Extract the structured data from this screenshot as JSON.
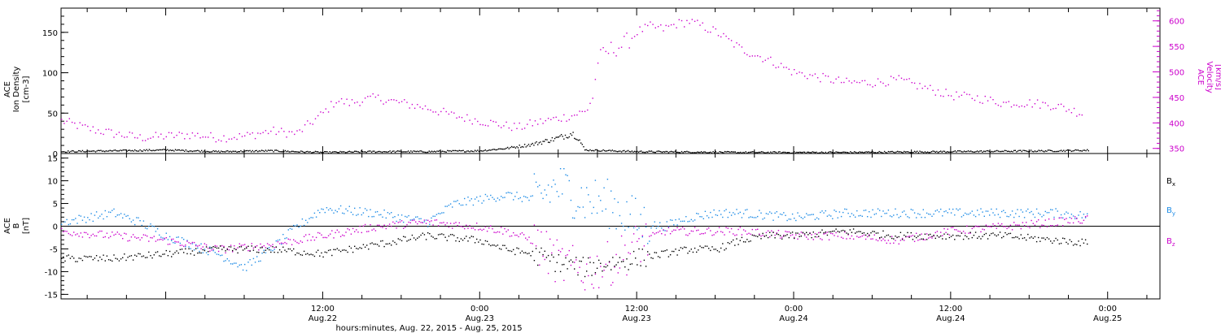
{
  "figure": {
    "xlabel": "hours:minutes, Aug. 22, 2015 - Aug. 25, 2015",
    "time_axis": {
      "range": [
        "2015-08-21T16:00",
        "2015-08-25T04:00"
      ],
      "ticks": [
        {
          "time": "2015-08-22T12:00",
          "line1": "12:00",
          "line2": "Aug.22"
        },
        {
          "time": "2015-08-23T00:00",
          "line1": "0:00",
          "line2": "Aug.23"
        },
        {
          "time": "2015-08-23T12:00",
          "line1": "12:00",
          "line2": "Aug.23"
        },
        {
          "time": "2015-08-24T00:00",
          "line1": "0:00",
          "line2": "Aug.24"
        },
        {
          "time": "2015-08-24T12:00",
          "line1": "12:00",
          "line2": "Aug.24"
        },
        {
          "time": "2015-08-25T00:00",
          "line1": "0:00",
          "line2": "Aug.25"
        }
      ]
    }
  },
  "chart_data": [
    {
      "type": "scatter",
      "panel": "top",
      "ylabel_left": [
        "ACE",
        "Ion Density",
        "[cm-3]"
      ],
      "ylabel_right": [
        "ACE",
        "Velocity",
        "[km/s]"
      ],
      "yleft_lim": [
        0,
        180
      ],
      "yleft_ticks": [
        0,
        50,
        100,
        150
      ],
      "yright_lim": [
        340,
        625
      ],
      "yright_ticks": [
        350,
        400,
        450,
        500,
        550,
        600
      ],
      "colors": {
        "density": "#000000",
        "velocity": "#cc00cc"
      },
      "series": [
        {
          "name": "Ion Density",
          "axis": "left",
          "x": [
            "2015-08-21T16:00",
            "2015-08-21T20:00",
            "2015-08-22T00:00",
            "2015-08-22T04:00",
            "2015-08-22T08:00",
            "2015-08-22T12:00",
            "2015-08-22T16:00",
            "2015-08-22T20:00",
            "2015-08-23T00:00",
            "2015-08-23T02:00",
            "2015-08-23T04:00",
            "2015-08-23T05:00",
            "2015-08-23T06:00",
            "2015-08-23T06:40",
            "2015-08-23T07:00",
            "2015-08-23T07:30",
            "2015-08-23T08:00",
            "2015-08-23T12:00",
            "2015-08-23T20:00",
            "2015-08-24T04:00",
            "2015-08-24T12:00",
            "2015-08-24T20:00",
            "2015-08-25T00:00"
          ],
          "y": [
            3,
            4,
            5,
            3,
            4,
            2,
            3,
            3,
            4,
            7,
            12,
            16,
            20,
            24,
            26,
            20,
            5,
            3,
            2,
            2,
            3,
            4,
            5
          ]
        },
        {
          "name": "Velocity",
          "axis": "right",
          "x": [
            "2015-08-21T16:00",
            "2015-08-21T18:00",
            "2015-08-21T20:00",
            "2015-08-21T22:00",
            "2015-08-22T00:00",
            "2015-08-22T02:00",
            "2015-08-22T04:00",
            "2015-08-22T06:00",
            "2015-08-22T08:00",
            "2015-08-22T10:00",
            "2015-08-22T12:00",
            "2015-08-22T13:00",
            "2015-08-22T14:00",
            "2015-08-22T16:00",
            "2015-08-22T18:00",
            "2015-08-22T20:00",
            "2015-08-22T22:00",
            "2015-08-23T00:00",
            "2015-08-23T02:00",
            "2015-08-23T03:00",
            "2015-08-23T04:00",
            "2015-08-23T05:00",
            "2015-08-23T06:00",
            "2015-08-23T07:00",
            "2015-08-23T07:30",
            "2015-08-23T08:00",
            "2015-08-23T08:40",
            "2015-08-23T09:00",
            "2015-08-23T10:00",
            "2015-08-23T11:00",
            "2015-08-23T12:00",
            "2015-08-23T13:00",
            "2015-08-23T14:00",
            "2015-08-23T15:00",
            "2015-08-23T16:00",
            "2015-08-23T18:00",
            "2015-08-23T20:00",
            "2015-08-23T22:00",
            "2015-08-24T00:00",
            "2015-08-24T02:00",
            "2015-08-24T04:00",
            "2015-08-24T06:00",
            "2015-08-24T08:00",
            "2015-08-24T10:00",
            "2015-08-24T12:00",
            "2015-08-24T14:00",
            "2015-08-24T16:00",
            "2015-08-24T18:00",
            "2015-08-24T20:00",
            "2015-08-24T22:00"
          ],
          "y": [
            405,
            390,
            380,
            372,
            375,
            378,
            372,
            375,
            385,
            380,
            420,
            445,
            440,
            450,
            440,
            430,
            415,
            405,
            395,
            392,
            400,
            405,
            410,
            415,
            420,
            422,
            455,
            525,
            545,
            555,
            580,
            590,
            585,
            595,
            600,
            580,
            545,
            525,
            500,
            490,
            480,
            480,
            485,
            470,
            455,
            450,
            440,
            440,
            435,
            420
          ]
        }
      ]
    },
    {
      "type": "scatter",
      "panel": "bottom",
      "ylabel_left": [
        "ACE",
        "B",
        "[nT]"
      ],
      "ylim": [
        -16,
        16
      ],
      "yticks": [
        -15,
        -10,
        -5,
        0,
        5,
        10,
        15
      ],
      "zero_line": true,
      "colors": {
        "Bx": "#000000",
        "By": "#1e8ce6",
        "Bz": "#cc00cc"
      },
      "series": [
        {
          "name": "Bx",
          "x": [
            "2015-08-21T16:00",
            "2015-08-21T20:00",
            "2015-08-22T00:00",
            "2015-08-22T04:00",
            "2015-08-22T08:00",
            "2015-08-22T12:00",
            "2015-08-22T16:00",
            "2015-08-22T20:00",
            "2015-08-23T00:00",
            "2015-08-23T02:00",
            "2015-08-23T04:00",
            "2015-08-23T06:00",
            "2015-08-23T08:00",
            "2015-08-23T10:00",
            "2015-08-23T12:00",
            "2015-08-23T14:00",
            "2015-08-23T16:00",
            "2015-08-23T18:00",
            "2015-08-23T20:00",
            "2015-08-23T22:00",
            "2015-08-24T00:00",
            "2015-08-24T04:00",
            "2015-08-24T08:00",
            "2015-08-24T12:00",
            "2015-08-24T16:00",
            "2015-08-24T20:00",
            "2015-08-25T00:00"
          ],
          "y": [
            -7,
            -7,
            -6,
            -5,
            -5,
            -6,
            -4,
            -2,
            -3,
            -5,
            -6,
            -8,
            -9,
            -8,
            -7,
            -6,
            -5,
            -5,
            -3,
            -2,
            -2,
            -1,
            -2,
            -2,
            -2,
            -3,
            -4
          ]
        },
        {
          "name": "By",
          "x": [
            "2015-08-21T16:00",
            "2015-08-21T18:00",
            "2015-08-21T20:00",
            "2015-08-21T22:00",
            "2015-08-22T00:00",
            "2015-08-22T02:00",
            "2015-08-22T04:00",
            "2015-08-22T06:00",
            "2015-08-22T08:00",
            "2015-08-22T10:00",
            "2015-08-22T12:00",
            "2015-08-22T16:00",
            "2015-08-22T20:00",
            "2015-08-22T22:00",
            "2015-08-23T00:00",
            "2015-08-23T02:00",
            "2015-08-23T04:00",
            "2015-08-23T06:00",
            "2015-08-23T08:00",
            "2015-08-23T10:00",
            "2015-08-23T12:00",
            "2015-08-23T14:00",
            "2015-08-23T16:00",
            "2015-08-23T18:00",
            "2015-08-23T20:00",
            "2015-08-24T00:00",
            "2015-08-24T04:00",
            "2015-08-24T08:00",
            "2015-08-24T12:00",
            "2015-08-24T16:00",
            "2015-08-24T20:00",
            "2015-08-25T00:00"
          ],
          "y": [
            1,
            2,
            3,
            1,
            -2,
            -4,
            -6,
            -9,
            -5,
            0,
            4,
            3,
            1,
            5,
            6,
            7,
            6,
            9,
            6,
            5,
            1,
            0,
            2,
            3,
            3,
            2,
            3,
            3,
            3,
            3,
            3,
            2
          ]
        },
        {
          "name": "Bz",
          "x": [
            "2015-08-21T16:00",
            "2015-08-21T20:00",
            "2015-08-22T00:00",
            "2015-08-22T04:00",
            "2015-08-22T08:00",
            "2015-08-22T12:00",
            "2015-08-22T16:00",
            "2015-08-22T20:00",
            "2015-08-23T00:00",
            "2015-08-23T02:00",
            "2015-08-23T04:00",
            "2015-08-23T06:00",
            "2015-08-23T08:00",
            "2015-08-23T10:00",
            "2015-08-23T12:00",
            "2015-08-23T14:00",
            "2015-08-23T16:00",
            "2015-08-23T20:00",
            "2015-08-24T00:00",
            "2015-08-24T04:00",
            "2015-08-24T08:00",
            "2015-08-24T12:00",
            "2015-08-24T16:00",
            "2015-08-24T20:00",
            "2015-08-25T00:00"
          ],
          "y": [
            -1,
            -2,
            -3,
            -5,
            -4,
            -2,
            0,
            1,
            0,
            -1,
            -3,
            -8,
            -10,
            -8,
            -4,
            -1,
            -1,
            -1,
            -2,
            -2,
            -3,
            -1,
            0,
            1,
            2
          ]
        }
      ],
      "legend": [
        {
          "name": "Bx",
          "base": "B",
          "sub": "x",
          "color": "#000000"
        },
        {
          "name": "By",
          "base": "B",
          "sub": "y",
          "color": "#1e8ce6"
        },
        {
          "name": "Bz",
          "base": "B",
          "sub": "z",
          "color": "#cc00cc"
        }
      ]
    }
  ]
}
